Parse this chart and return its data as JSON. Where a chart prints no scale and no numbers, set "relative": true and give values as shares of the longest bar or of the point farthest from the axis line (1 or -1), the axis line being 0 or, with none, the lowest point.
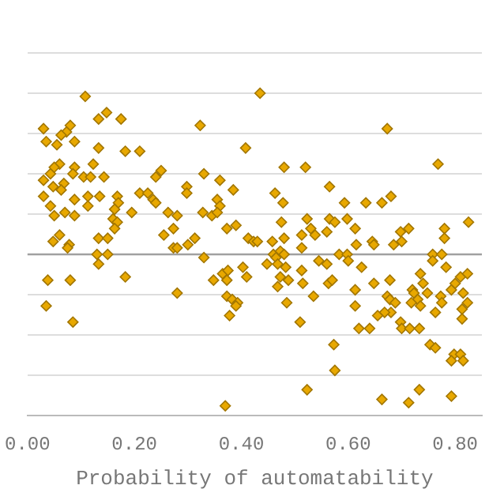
{
  "chart_data": {
    "type": "scatter",
    "xlabel": "Probability of automatability",
    "relative": true,
    "marker": "diamond",
    "grid": "y",
    "tick_labels": "x",
    "legend": false,
    "xlim": [
      0,
      0.85
    ],
    "xticks": [
      {
        "value": 0,
        "label": "0.00"
      },
      {
        "value": 0.2,
        "label": "0.20"
      },
      {
        "value": 0.4,
        "label": "0.40"
      },
      {
        "value": 0.6,
        "label": "0.60"
      },
      {
        "value": 0.8,
        "label": "0.80"
      }
    ],
    "ref_lines": [
      {
        "axis": "y",
        "value": 0.5,
        "label": null,
        "color": "#a0a0a0"
      }
    ],
    "series": [
      {
        "color": "#e8a800",
        "x": [
          0.108,
          0.148,
          0.133,
          0.175,
          0.03,
          0.08,
          0.073,
          0.063,
          0.088,
          0.035,
          0.055,
          0.133,
          0.183,
          0.21,
          0.323,
          0.408,
          0.435,
          0.06,
          0.05,
          0.088,
          0.123,
          0.043,
          0.03,
          0.085,
          0.105,
          0.118,
          0.143,
          0.048,
          0.068,
          0.03,
          0.063,
          0.113,
          0.135,
          0.088,
          0.168,
          0.17,
          0.25,
          0.24,
          0.21,
          0.225,
          0.235,
          0.24,
          0.298,
          0.298,
          0.33,
          0.36,
          0.385,
          0.355,
          0.36,
          0.043,
          0.113,
          0.163,
          0.16,
          0.168,
          0.163,
          0.195,
          0.263,
          0.28,
          0.328,
          0.345,
          0.355,
          0.05,
          0.07,
          0.088,
          0.273,
          0.255,
          0.373,
          0.39,
          0.06,
          0.133,
          0.15,
          0.313,
          0.413,
          0.048,
          0.078,
          0.075,
          0.273,
          0.28,
          0.3,
          0.13,
          0.15,
          0.33,
          0.423,
          0.673,
          0.48,
          0.52,
          0.768,
          0.463,
          0.565,
          0.478,
          0.593,
          0.633,
          0.663,
          0.68,
          0.523,
          0.475,
          0.565,
          0.575,
          0.598,
          0.53,
          0.538,
          0.513,
          0.56,
          0.613,
          0.713,
          0.698,
          0.78,
          0.78,
          0.825,
          0.43,
          0.458,
          0.48,
          0.513,
          0.615,
          0.645,
          0.648,
          0.685,
          0.7,
          0.46,
          0.473,
          0.48,
          0.583,
          0.598,
          0.758,
          0.775,
          0.133,
          0.038,
          0.08,
          0.183,
          0.28,
          0.348,
          0.365,
          0.375,
          0.373,
          0.403,
          0.41,
          0.373,
          0.383,
          0.393,
          0.39,
          0.378,
          0.035,
          0.085,
          0.37,
          0.448,
          0.465,
          0.468,
          0.483,
          0.473,
          0.488,
          0.468,
          0.513,
          0.515,
          0.485,
          0.535,
          0.51,
          0.545,
          0.56,
          0.563,
          0.57,
          0.6,
          0.625,
          0.613,
          0.613,
          0.648,
          0.678,
          0.673,
          0.678,
          0.688,
          0.68,
          0.668,
          0.655,
          0.698,
          0.7,
          0.715,
          0.733,
          0.64,
          0.62,
          0.735,
          0.74,
          0.72,
          0.723,
          0.73,
          0.718,
          0.735,
          0.748,
          0.763,
          0.758,
          0.783,
          0.773,
          0.775,
          0.793,
          0.8,
          0.81,
          0.823,
          0.815,
          0.813,
          0.813,
          0.823,
          0.753,
          0.763,
          0.798,
          0.81,
          0.793,
          0.815,
          0.573,
          0.575,
          0.523,
          0.663,
          0.713,
          0.733,
          0.793
        ],
        "values": [
          0.99,
          0.94,
          0.92,
          0.92,
          0.89,
          0.9,
          0.88,
          0.87,
          0.85,
          0.85,
          0.84,
          0.83,
          0.82,
          0.82,
          0.9,
          0.83,
          1.0,
          0.78,
          0.77,
          0.77,
          0.78,
          0.75,
          0.73,
          0.75,
          0.74,
          0.74,
          0.74,
          0.71,
          0.72,
          0.68,
          0.7,
          0.68,
          0.68,
          0.67,
          0.68,
          0.66,
          0.76,
          0.74,
          0.69,
          0.69,
          0.67,
          0.66,
          0.71,
          0.69,
          0.75,
          0.73,
          0.7,
          0.67,
          0.65,
          0.65,
          0.65,
          0.64,
          0.61,
          0.6,
          0.58,
          0.63,
          0.63,
          0.62,
          0.63,
          0.62,
          0.63,
          0.62,
          0.63,
          0.62,
          0.58,
          0.56,
          0.58,
          0.59,
          0.56,
          0.55,
          0.55,
          0.55,
          0.55,
          0.54,
          0.53,
          0.52,
          0.52,
          0.52,
          0.53,
          0.5,
          0.5,
          0.49,
          0.54,
          0.89,
          0.77,
          0.77,
          0.78,
          0.69,
          0.71,
          0.66,
          0.66,
          0.66,
          0.66,
          0.68,
          0.61,
          0.6,
          0.61,
          0.6,
          0.61,
          0.58,
          0.56,
          0.56,
          0.57,
          0.58,
          0.58,
          0.57,
          0.58,
          0.55,
          0.6,
          0.54,
          0.54,
          0.55,
          0.52,
          0.53,
          0.54,
          0.53,
          0.53,
          0.54,
          0.5,
          0.51,
          0.5,
          0.5,
          0.5,
          0.5,
          0.5,
          0.47,
          0.42,
          0.42,
          0.43,
          0.38,
          0.42,
          0.44,
          0.45,
          0.42,
          0.46,
          0.43,
          0.37,
          0.36,
          0.35,
          0.34,
          0.31,
          0.34,
          0.29,
          0.03,
          0.47,
          0.49,
          0.47,
          0.46,
          0.43,
          0.42,
          0.4,
          0.45,
          0.41,
          0.35,
          0.37,
          0.29,
          0.48,
          0.47,
          0.41,
          0.42,
          0.48,
          0.46,
          0.39,
          0.34,
          0.41,
          0.42,
          0.37,
          0.36,
          0.35,
          0.32,
          0.32,
          0.31,
          0.29,
          0.27,
          0.27,
          0.27,
          0.27,
          0.27,
          0.44,
          0.41,
          0.39,
          0.38,
          0.36,
          0.35,
          0.34,
          0.38,
          0.32,
          0.48,
          0.46,
          0.37,
          0.35,
          0.39,
          0.41,
          0.43,
          0.44,
          0.38,
          0.33,
          0.3,
          0.35,
          0.22,
          0.21,
          0.19,
          0.19,
          0.17,
          0.17,
          0.22,
          0.14,
          0.08,
          0.05,
          0.04,
          0.08,
          0.06
        ]
      }
    ]
  }
}
